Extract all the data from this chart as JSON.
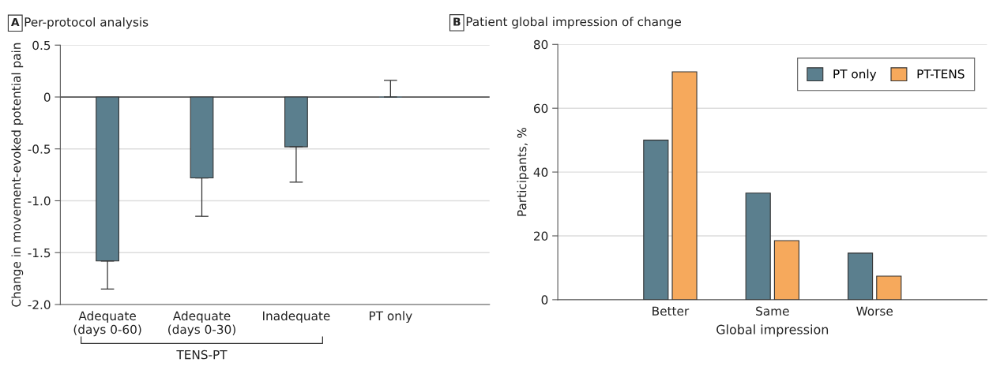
{
  "chart_data": [
    {
      "type": "bar",
      "title": "Per-protocol analysis",
      "ylabel": "Change in movement-evoked potential pain",
      "categories": [
        "Adequate\n(days 0-60)",
        "Adequate\n(days 0-30)",
        "Inadequate",
        "PT only"
      ],
      "values": [
        -1.58,
        -0.78,
        -0.48,
        0
      ],
      "color": "#5b7f8e",
      "errors": [
        [
          -1.85,
          -1.58
        ],
        [
          -1.15,
          -0.78
        ],
        [
          -0.82,
          -0.48
        ],
        [
          0,
          0.16
        ]
      ],
      "ylim": [
        -2.0,
        0.5
      ],
      "yticks": [
        {
          "value": -2.0,
          "label": "-2.0"
        },
        {
          "value": -1.5,
          "label": "-1.5"
        },
        {
          "value": -1.0,
          "label": "-1.0"
        },
        {
          "value": -0.5,
          "label": "-0.5"
        },
        0,
        0.5
      ],
      "ref_lines": [
        {
          "axis": "y",
          "value": 0,
          "color": "#404040"
        }
      ],
      "annotations": [
        "A",
        "TENS-PT"
      ],
      "grid": "y",
      "legend": false
    },
    {
      "type": "bar",
      "title": "Patient global impression of change",
      "xlabel": "Global impression",
      "ylabel": "Participants, %",
      "categories": [
        "Better",
        "Same",
        "Worse"
      ],
      "series": [
        {
          "name": "PT only",
          "color": "#5b7f8e",
          "values": [
            50,
            33.4,
            14.6
          ]
        },
        {
          "name": "PT-TENS",
          "color": "#f6a95c",
          "values": [
            71.4,
            18.5,
            7.4
          ]
        }
      ],
      "ylim": [
        0,
        80
      ],
      "yticks": [
        0,
        20,
        40,
        60,
        80
      ],
      "annotations": [
        "B"
      ],
      "grid": "y",
      "legend": "top right"
    }
  ]
}
